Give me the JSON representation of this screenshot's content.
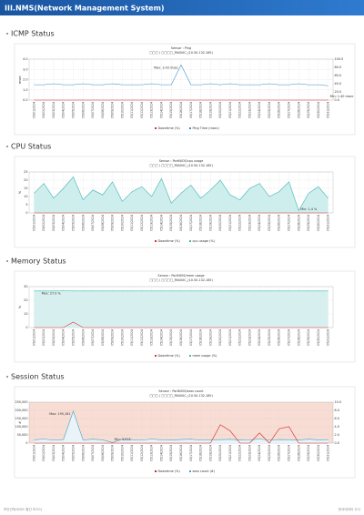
{
  "header": {
    "title": "III.NMS(Network Management System)"
  },
  "sections": [
    {
      "title": "ICMP Status"
    },
    {
      "title": "CPU Status"
    },
    {
      "title": "Memory Status"
    },
    {
      "title": "Session Status"
    }
  ],
  "chart_data": [
    {
      "type": "line",
      "title": "Sensor : Ping",
      "subtitle": "□□□ / □□□□_PAS00C_(10.50.132.165)",
      "ylabel": "msec",
      "categories": [
        "05/01/2024",
        "05/02/2024",
        "05/03/2024",
        "05/04/2024",
        "05/05/2024",
        "05/06/2024",
        "05/07/2024",
        "05/08/2024",
        "05/09/2024",
        "05/10/2024",
        "05/11/2024",
        "05/12/2024",
        "05/13/2024",
        "05/14/2024",
        "05/15/2024",
        "05/16/2024",
        "05/17/2024",
        "05/18/2024",
        "05/19/2024",
        "05/20/2024",
        "05/21/2024",
        "05/22/2024",
        "05/23/2024",
        "05/24/2024",
        "05/25/2024",
        "05/26/2024",
        "05/27/2024",
        "05/28/2024",
        "05/29/2024",
        "05/30/2024",
        "05/31/2024"
      ],
      "series": [
        {
          "name": "Downtime (%)",
          "color": "#e03030",
          "axis": "y2",
          "values": [
            0,
            0,
            0,
            0,
            0,
            0,
            0,
            0,
            0,
            0,
            0,
            0,
            0,
            0,
            0,
            0,
            0,
            0,
            0,
            0,
            0,
            0,
            0,
            0,
            0,
            0,
            0,
            0,
            0,
            0,
            0
          ]
        },
        {
          "name": "Ping Time (msec)",
          "color": "#3a8fc0",
          "values": [
            1.5,
            1.5,
            1.6,
            1.5,
            1.5,
            1.6,
            1.5,
            1.5,
            1.6,
            1.5,
            1.5,
            1.5,
            1.6,
            1.5,
            1.5,
            3.43,
            1.5,
            1.5,
            1.6,
            1.5,
            1.6,
            1.5,
            1.5,
            1.5,
            1.6,
            1.5,
            1.5,
            1.6,
            1.5,
            1.5,
            1.4
          ]
        }
      ],
      "ylim": [
        0,
        4
      ],
      "yticks": [
        {
          "value": 0,
          "label": "0.0"
        },
        {
          "value": 1,
          "label": "1.0"
        },
        {
          "value": 2,
          "label": "2.0"
        },
        {
          "value": 3,
          "label": "3.0"
        },
        {
          "value": 4,
          "label": "4.0"
        }
      ],
      "y2lim": [
        0,
        100
      ],
      "y2ticks": [
        {
          "value": 0,
          "label": "0.0"
        },
        {
          "value": 20,
          "label": "20.0"
        },
        {
          "value": 40,
          "label": "40.0"
        },
        {
          "value": 60,
          "label": "60.0"
        },
        {
          "value": 80,
          "label": "80.0"
        },
        {
          "value": 100,
          "label": "100.0"
        }
      ],
      "max_label": "Max: 3.43 msec",
      "min_label": "Min: 1.40 msec",
      "grid": true
    },
    {
      "type": "line",
      "title": "Sensor : PortNIOS/cpu usage",
      "subtitle": "□□□ / □□□□_PAS00C_(10.50.132.165)",
      "ylabel": "%",
      "categories": [
        "05/01/2024",
        "05/02/2024",
        "05/03/2024",
        "05/04/2024",
        "05/05/2024",
        "05/06/2024",
        "05/07/2024",
        "05/08/2024",
        "05/09/2024",
        "05/10/2024",
        "05/11/2024",
        "05/12/2024",
        "05/13/2024",
        "05/14/2024",
        "05/15/2024",
        "05/16/2024",
        "05/17/2024",
        "05/18/2024",
        "05/19/2024",
        "05/20/2024",
        "05/21/2024",
        "05/22/2024",
        "05/23/2024",
        "05/24/2024",
        "05/25/2024",
        "05/26/2024",
        "05/27/2024",
        "05/28/2024",
        "05/29/2024",
        "05/30/2024",
        "05/31/2024"
      ],
      "series": [
        {
          "name": "Downtime (%)",
          "color": "#e03030",
          "values": [
            0,
            0,
            0,
            0,
            0,
            0,
            0,
            0,
            0,
            0,
            0,
            0,
            0,
            0,
            0,
            0,
            0,
            0,
            0,
            0,
            0,
            0,
            0,
            0,
            0,
            0,
            0,
            0,
            0,
            0,
            0
          ]
        },
        {
          "name": "cpu usage (%)",
          "color": "#3fb5b0",
          "fill": "#cdeeed",
          "values": [
            12,
            18,
            9,
            15,
            22,
            8,
            14,
            11,
            19,
            7,
            13,
            16,
            10,
            21,
            6,
            12,
            17,
            9,
            14,
            20,
            11,
            8,
            15,
            18,
            10,
            13,
            19,
            1.4,
            12,
            16,
            9
          ]
        }
      ],
      "ylim": [
        0,
        25
      ],
      "yticks": [
        0,
        5,
        10,
        15,
        20,
        25
      ],
      "min_label": "Min: 1.4 %",
      "grid": true
    },
    {
      "type": "line",
      "title": "Sensor : PortNIOS/mem usage",
      "subtitle": "□□□ / □□□□_PAS00C_(10.50.132.165)",
      "ylabel": "%",
      "categories": [
        "05/01/2024",
        "05/02/2024",
        "05/03/2024",
        "05/04/2024",
        "05/05/2024",
        "05/06/2024",
        "05/07/2024",
        "05/08/2024",
        "05/09/2024",
        "05/10/2024",
        "05/11/2024",
        "05/12/2024",
        "05/13/2024",
        "05/14/2024",
        "05/15/2024",
        "05/16/2024",
        "05/17/2024",
        "05/18/2024",
        "05/19/2024",
        "05/20/2024",
        "05/21/2024",
        "05/22/2024",
        "05/23/2024",
        "05/24/2024",
        "05/25/2024",
        "05/26/2024",
        "05/27/2024",
        "05/28/2024",
        "05/29/2024",
        "05/30/2024",
        "05/31/2024"
      ],
      "series": [
        {
          "name": "Downtime (%)",
          "color": "#e03030",
          "values": [
            0,
            0,
            0,
            0,
            4,
            0,
            0,
            0,
            0,
            0,
            0,
            0,
            0,
            0,
            0,
            0,
            0,
            0,
            0,
            0,
            0,
            0,
            0,
            0,
            0,
            0,
            0,
            0,
            0,
            0,
            0
          ]
        },
        {
          "name": "mem usage (%)",
          "color": "#3fb5b0",
          "fill": "#d7f0ef",
          "values": [
            26.8,
            26.8,
            26.8,
            27,
            26.8,
            26.8,
            26.8,
            26.8,
            26.8,
            26.8,
            26.8,
            26.8,
            26.8,
            26.8,
            26.8,
            26.8,
            26.8,
            26.8,
            26.8,
            26.8,
            26.8,
            26.8,
            26.8,
            26.8,
            26.8,
            26.8,
            26.8,
            26.8,
            26.8,
            26.8,
            26.8
          ]
        }
      ],
      "ylim": [
        0,
        30
      ],
      "yticks": [
        0,
        10,
        20,
        30
      ],
      "max_label": "Max: 27.0 %",
      "grid": true
    },
    {
      "type": "line",
      "title": "Sensor : PortNIOS/sess count",
      "subtitle": "□□□ / □□□□_PAS00C_(10.50.132.165)",
      "ylabel": "#",
      "background": "#f8ddd4",
      "categories": [
        "05/01/2024",
        "05/02/2024",
        "05/03/2024",
        "05/04/2024",
        "05/05/2024",
        "05/06/2024",
        "05/07/2024",
        "05/08/2024",
        "05/09/2024",
        "05/10/2024",
        "05/11/2024",
        "05/12/2024",
        "05/13/2024",
        "05/14/2024",
        "05/15/2024",
        "05/16/2024",
        "05/17/2024",
        "05/18/2024",
        "05/19/2024",
        "05/20/2024",
        "05/21/2024",
        "05/22/2024",
        "05/23/2024",
        "05/24/2024",
        "05/25/2024",
        "05/26/2024",
        "05/27/2024",
        "05/28/2024",
        "05/29/2024",
        "05/30/2024",
        "05/31/2024"
      ],
      "series": [
        {
          "name": "Downtime (%)",
          "color": "#d02020",
          "axis": "y2",
          "values": [
            0,
            0,
            0,
            0,
            0,
            0,
            0,
            0,
            0,
            0,
            0,
            0,
            0,
            0,
            0,
            0,
            0,
            0,
            0,
            4.5,
            3,
            0,
            0,
            2.5,
            0,
            3.5,
            4,
            0,
            0,
            0,
            0
          ]
        },
        {
          "name": "sess count (#)",
          "color": "#3fa0c8",
          "fill": "#eaf4f8",
          "values": [
            20000,
            25000,
            18000,
            22000,
            195161,
            19000,
            24000,
            20000,
            3013,
            23000,
            21000,
            18000,
            25000,
            20000,
            19000,
            22000,
            24000,
            18000,
            21000,
            21000,
            23000,
            19000,
            20000,
            25000,
            18000,
            22000,
            21000,
            19000,
            24000,
            20000,
            22000
          ]
        }
      ],
      "ylim": [
        0,
        250000
      ],
      "yticks": [
        0,
        {
          "value": 50000,
          "label": "50,000"
        },
        {
          "value": 100000,
          "label": "100,000"
        },
        {
          "value": 150000,
          "label": "150,000"
        },
        {
          "value": 200000,
          "label": "200,000"
        },
        {
          "value": 250000,
          "label": "250,000"
        }
      ],
      "y2lim": [
        0,
        10
      ],
      "y2ticks": [
        {
          "value": 0,
          "label": "0.0"
        },
        {
          "value": 2,
          "label": "2.0"
        },
        {
          "value": 4,
          "label": "4.0"
        },
        {
          "value": 6,
          "label": "6.0"
        },
        {
          "value": 8,
          "label": "8.0"
        },
        {
          "value": 10,
          "label": "10.0"
        }
      ],
      "max_label": "Max: 195,161",
      "min_label": "Min: 3,013",
      "grid": true
    }
  ],
  "footer": {
    "left": "보안관제서비스 월간 보고서",
    "right": "한국데이터 주식"
  }
}
